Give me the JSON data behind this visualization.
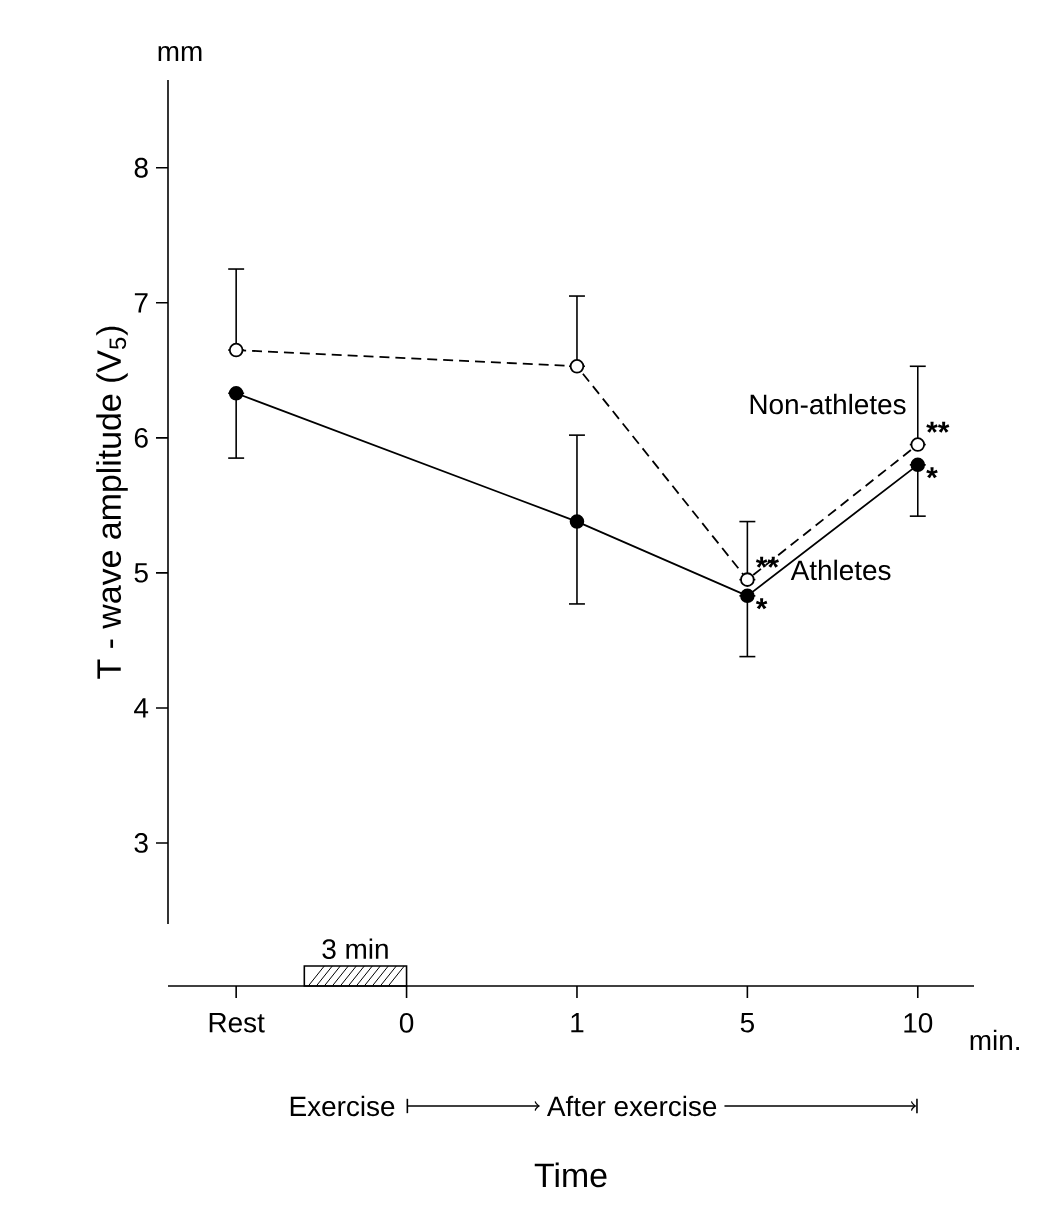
{
  "chart_data": {
    "type": "line",
    "xlabel": "Time",
    "ylabel": "T - wave amplitude (V$_{5}$)",
    "categories": [
      "Rest",
      "0",
      "1",
      "5",
      "10"
    ],
    "ylim": [
      2.4,
      8.65
    ],
    "yticks": [
      3,
      4,
      5,
      6,
      7,
      8
    ],
    "marker": "circle",
    "series": [
      {
        "name": "Non-athletes",
        "color": "#000000",
        "line_style": "dashed",
        "values": [
          6.65,
          null,
          6.53,
          4.95,
          5.95
        ],
        "errors": [
          [
            6.65,
            7.25
          ],
          null,
          [
            6.53,
            7.05
          ],
          [
            4.95,
            5.38
          ],
          [
            5.95,
            6.53
          ]
        ]
      },
      {
        "name": "Athletes",
        "color": "#000000",
        "line_style": "solid",
        "values": [
          6.33,
          null,
          5.38,
          4.83,
          5.8
        ],
        "errors": [
          [
            5.85,
            6.33
          ],
          null,
          [
            4.77,
            6.02
          ],
          [
            4.38,
            4.83
          ],
          [
            5.42,
            5.8
          ]
        ]
      }
    ],
    "annotations": [
      {
        "text": "**",
        "x": "5",
        "y": 4.95
      },
      {
        "text": "*",
        "x": "5",
        "y": 4.83
      },
      {
        "text": "**",
        "x": "10",
        "y": 5.95
      },
      {
        "text": "*",
        "x": "10",
        "y": 5.8
      },
      "mm",
      "min.",
      "3 min",
      "Exercise",
      "After exercise"
    ]
  }
}
